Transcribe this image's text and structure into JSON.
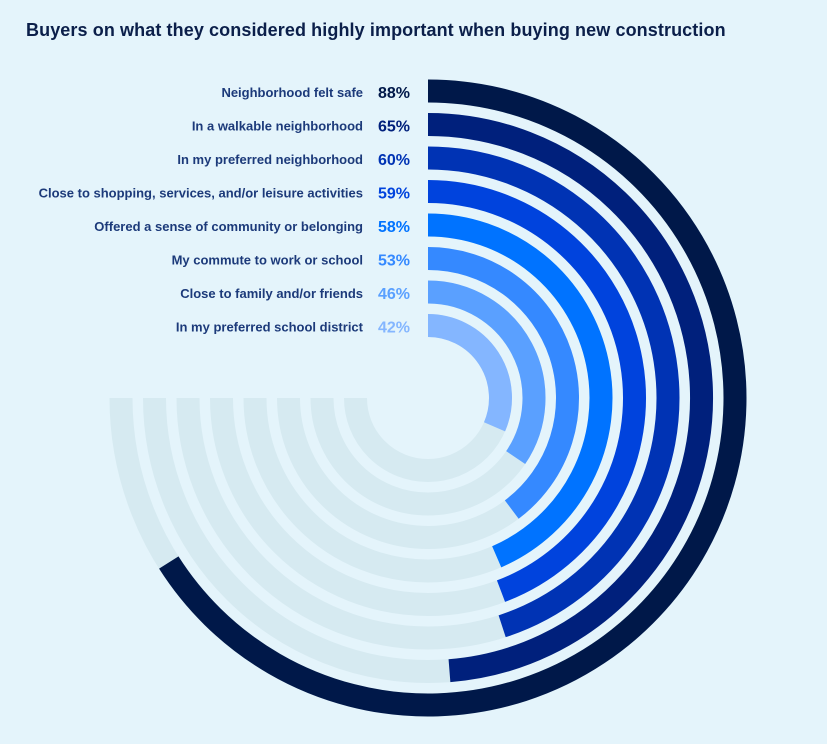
{
  "title": "Buyers on what they considered highly important when buying new construction",
  "chart_data": {
    "type": "radial-bar",
    "title": "Buyers on what they considered highly important when buying new construction",
    "unit": "%",
    "max": 100,
    "categories": [
      "Neighborhood felt safe",
      "In a walkable neighborhood",
      "In my preferred neighborhood",
      "Close to shopping, services, and/or leisure activities",
      "Offered a sense of community or belonging",
      "My commute to work or school",
      "Close to family and/or friends",
      "In my preferred school district"
    ],
    "values": [
      88,
      65,
      60,
      59,
      58,
      53,
      46,
      42
    ],
    "value_labels": [
      "88%",
      "65%",
      "60%",
      "59%",
      "58%",
      "53%",
      "46%",
      "42%"
    ],
    "colors": [
      "#001849",
      "#00207c",
      "#0033b4",
      "#0043dd",
      "#0073ff",
      "#3589ff",
      "#5aa0ff",
      "#84b6ff"
    ],
    "track_color": "#d6eaf1"
  }
}
